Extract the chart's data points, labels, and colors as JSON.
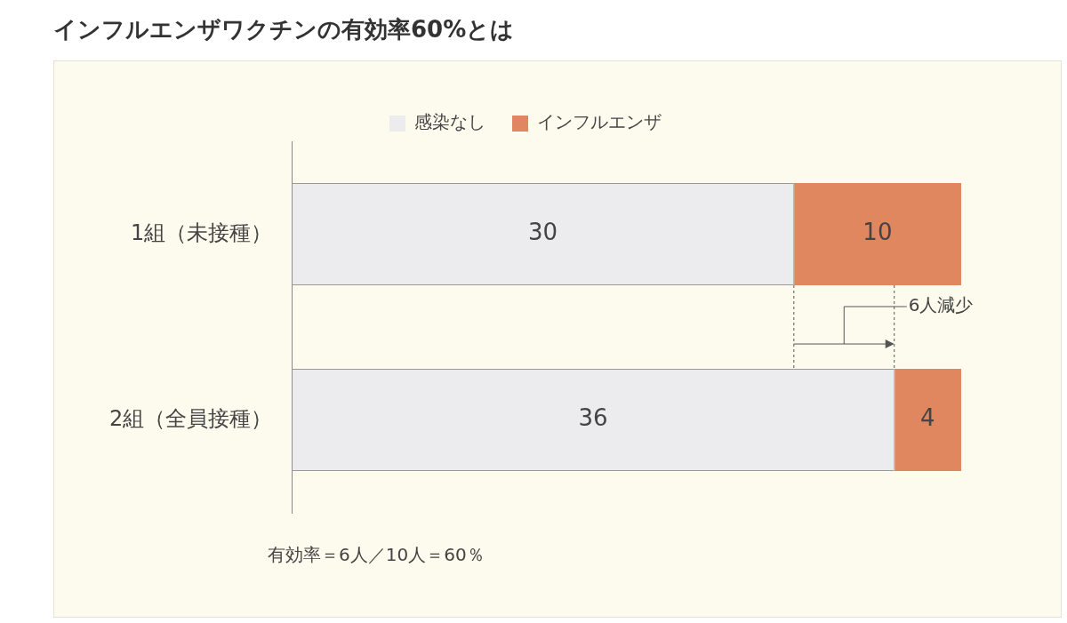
{
  "chart_data": {
    "type": "bar",
    "orientation": "horizontal",
    "stacked": true,
    "title": "インフルエンザワクチンの有効率60%とは",
    "categories": [
      "1組（未接種）",
      "2組（全員接種）"
    ],
    "series": [
      {
        "name": "感染なし",
        "color": "#ececee",
        "values": [
          30,
          36
        ]
      },
      {
        "name": "インフルエンザ",
        "color": "#e0875f",
        "values": [
          10,
          4
        ]
      }
    ],
    "ref_lines": [
      {
        "axis": "x",
        "value": 30,
        "line_style": "dashed"
      },
      {
        "axis": "x",
        "value": 36,
        "line_style": "dashed"
      }
    ],
    "data_labels": true,
    "legend": "top",
    "grid": false,
    "annotations": [
      "6人減少",
      "有効率＝6人／10人＝60％"
    ]
  }
}
